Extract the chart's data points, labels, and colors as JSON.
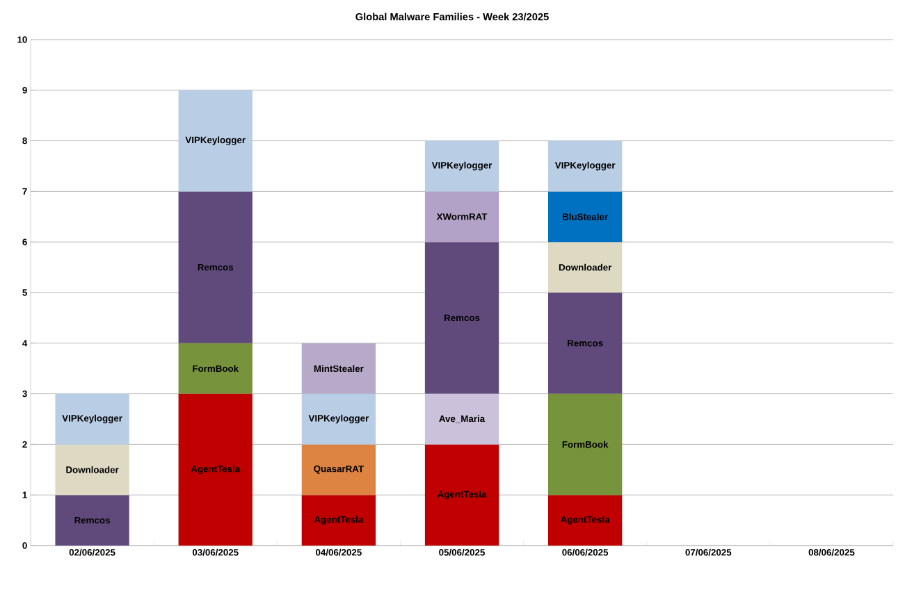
{
  "chart_data": {
    "type": "bar",
    "title": "Global Malware Families - Week 23/2025",
    "categories": [
      "02/06/2025",
      "03/06/2025",
      "04/06/2025",
      "05/06/2025",
      "06/06/2025",
      "07/06/2025",
      "08/06/2025"
    ],
    "stacked": true,
    "ylim": [
      0,
      10
    ],
    "yticks": [
      0,
      1,
      2,
      3,
      4,
      5,
      6,
      7,
      8,
      9,
      10
    ],
    "grid": "y",
    "series": [
      {
        "name": "AgentTesla",
        "color": "#c00000",
        "values": [
          null,
          3,
          1,
          2,
          1,
          null,
          null
        ]
      },
      {
        "name": "QuasarRAT",
        "color": "#dd8442",
        "values": [
          null,
          null,
          1,
          null,
          null,
          null,
          null
        ]
      },
      {
        "name": "Ave_Maria",
        "color": "#ccc1da",
        "values": [
          null,
          null,
          null,
          1,
          null,
          null,
          null
        ]
      },
      {
        "name": "FormBook",
        "color": "#77933c",
        "values": [
          null,
          1,
          null,
          null,
          2,
          null,
          null
        ]
      },
      {
        "name": "Remcos",
        "color": "#604a7b",
        "values": [
          1,
          3,
          null,
          3,
          2,
          null,
          null
        ]
      },
      {
        "name": "XWormRAT",
        "color": "#b3a2c7",
        "values": [
          null,
          null,
          null,
          1,
          null,
          null,
          null
        ]
      },
      {
        "name": "Downloader",
        "color": "#ddd9c3",
        "values": [
          1,
          null,
          null,
          null,
          1,
          null,
          null
        ]
      },
      {
        "name": "BluStealer",
        "color": "#0070c0",
        "values": [
          null,
          null,
          null,
          null,
          1,
          null,
          null
        ]
      },
      {
        "name": "VIPKeylogger",
        "color": "#b9cde5",
        "values": [
          1,
          2,
          1,
          1,
          1,
          null,
          null
        ]
      },
      {
        "name": "MintStealer",
        "color": "#b7aac8",
        "values": [
          null,
          null,
          1,
          null,
          null,
          null,
          null
        ]
      }
    ]
  }
}
